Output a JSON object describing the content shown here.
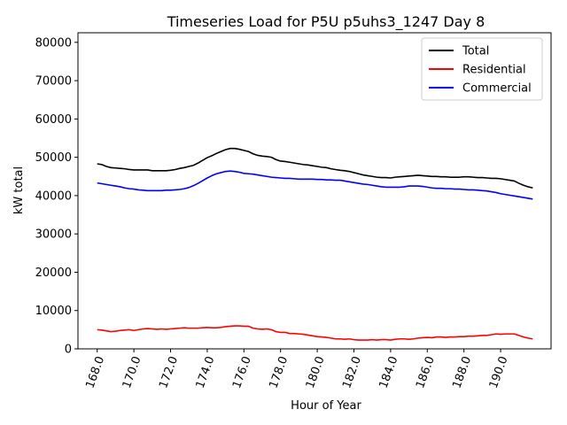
{
  "chart_data": {
    "type": "line",
    "title": "Timeseries Load for P5U p5uhs3_1247  Day 8",
    "xlabel": "Hour of Year",
    "ylabel": "kW total",
    "xlim": [
      166.95,
      192.75
    ],
    "ylim": [
      0,
      82500
    ],
    "xticks": [
      168,
      170,
      172,
      174,
      176,
      178,
      180,
      182,
      184,
      186,
      188,
      190
    ],
    "xtick_labels": [
      "168.0",
      "170.0",
      "172.0",
      "174.0",
      "176.0",
      "178.0",
      "180.0",
      "182.0",
      "184.0",
      "186.0",
      "188.0",
      "190.0"
    ],
    "yticks": [
      0,
      10000,
      20000,
      30000,
      40000,
      50000,
      60000,
      70000,
      80000
    ],
    "ytick_labels": [
      "0",
      "10000",
      "20000",
      "30000",
      "40000",
      "50000",
      "60000",
      "70000",
      "80000"
    ],
    "legend_position": "top-right",
    "x": [
      168.0,
      168.25,
      168.5,
      168.75,
      169.0,
      169.25,
      169.5,
      169.75,
      170.0,
      170.25,
      170.5,
      170.75,
      171.0,
      171.25,
      171.5,
      171.75,
      172.0,
      172.25,
      172.5,
      172.75,
      173.0,
      173.25,
      173.5,
      173.75,
      174.0,
      174.25,
      174.5,
      174.75,
      175.0,
      175.25,
      175.5,
      175.75,
      176.0,
      176.25,
      176.5,
      176.75,
      177.0,
      177.25,
      177.5,
      177.75,
      178.0,
      178.25,
      178.5,
      178.75,
      179.0,
      179.25,
      179.5,
      179.75,
      180.0,
      180.25,
      180.5,
      180.75,
      181.0,
      181.25,
      181.5,
      181.75,
      182.0,
      182.25,
      182.5,
      182.75,
      183.0,
      183.25,
      183.5,
      183.75,
      184.0,
      184.25,
      184.5,
      184.75,
      185.0,
      185.25,
      185.5,
      185.75,
      186.0,
      186.25,
      186.5,
      186.75,
      187.0,
      187.25,
      187.5,
      187.75,
      188.0,
      188.25,
      188.5,
      188.75,
      189.0,
      189.25,
      189.5,
      189.75,
      190.0,
      190.25,
      190.5,
      190.75,
      191.0,
      191.25,
      191.5,
      191.75
    ],
    "series": [
      {
        "name": "Total",
        "color": "#000000",
        "values": [
          48300,
          48100,
          47600,
          47300,
          47200,
          47100,
          47000,
          46800,
          46700,
          46700,
          46700,
          46700,
          46500,
          46500,
          46500,
          46500,
          46600,
          46800,
          47100,
          47300,
          47600,
          47900,
          48500,
          49200,
          49900,
          50400,
          51000,
          51500,
          52000,
          52300,
          52300,
          52100,
          51800,
          51500,
          50900,
          50500,
          50300,
          50200,
          50000,
          49400,
          49000,
          48900,
          48700,
          48500,
          48300,
          48100,
          48000,
          47800,
          47600,
          47400,
          47300,
          47000,
          46800,
          46600,
          46500,
          46300,
          46000,
          45700,
          45400,
          45200,
          45000,
          44800,
          44700,
          44700,
          44600,
          44800,
          44900,
          45000,
          45100,
          45200,
          45300,
          45200,
          45100,
          45000,
          45000,
          44900,
          44900,
          44800,
          44800,
          44800,
          44900,
          44900,
          44800,
          44700,
          44700,
          44600,
          44500,
          44500,
          44400,
          44200,
          44000,
          43800,
          43200,
          42700,
          42300,
          42000
        ]
      },
      {
        "name": "Residential",
        "color": "#ff0000",
        "values": [
          5000,
          4900,
          4700,
          4500,
          4600,
          4800,
          4900,
          5000,
          4800,
          5000,
          5200,
          5300,
          5200,
          5100,
          5200,
          5100,
          5200,
          5300,
          5400,
          5500,
          5400,
          5400,
          5400,
          5500,
          5600,
          5500,
          5500,
          5600,
          5800,
          5900,
          6000,
          6000,
          5900,
          5900,
          5400,
          5200,
          5100,
          5200,
          5000,
          4500,
          4300,
          4300,
          4000,
          4000,
          3900,
          3800,
          3600,
          3400,
          3200,
          3100,
          3000,
          2800,
          2600,
          2600,
          2500,
          2600,
          2400,
          2300,
          2300,
          2300,
          2400,
          2300,
          2400,
          2400,
          2300,
          2500,
          2600,
          2600,
          2500,
          2600,
          2800,
          2900,
          3000,
          2900,
          3100,
          3100,
          3000,
          3100,
          3100,
          3200,
          3200,
          3300,
          3300,
          3400,
          3500,
          3500,
          3700,
          3900,
          3800,
          3900,
          3900,
          3900,
          3500,
          3100,
          2800,
          2600
        ]
      },
      {
        "name": "Commercial",
        "color": "#0000ff",
        "values": [
          43300,
          43100,
          42900,
          42700,
          42500,
          42300,
          42000,
          41800,
          41700,
          41500,
          41400,
          41300,
          41300,
          41300,
          41300,
          41400,
          41400,
          41500,
          41600,
          41800,
          42100,
          42600,
          43200,
          43900,
          44600,
          45200,
          45700,
          46000,
          46300,
          46400,
          46300,
          46100,
          45800,
          45700,
          45600,
          45400,
          45200,
          45000,
          44800,
          44700,
          44600,
          44500,
          44500,
          44400,
          44300,
          44300,
          44300,
          44300,
          44200,
          44200,
          44100,
          44100,
          44000,
          44000,
          43800,
          43600,
          43400,
          43200,
          43000,
          42900,
          42700,
          42500,
          42300,
          42200,
          42200,
          42200,
          42200,
          42300,
          42500,
          42500,
          42500,
          42400,
          42200,
          42000,
          41900,
          41900,
          41800,
          41800,
          41700,
          41700,
          41600,
          41500,
          41500,
          41400,
          41300,
          41200,
          41000,
          40800,
          40500,
          40300,
          40100,
          39900,
          39700,
          39500,
          39300,
          39100
        ]
      }
    ]
  }
}
